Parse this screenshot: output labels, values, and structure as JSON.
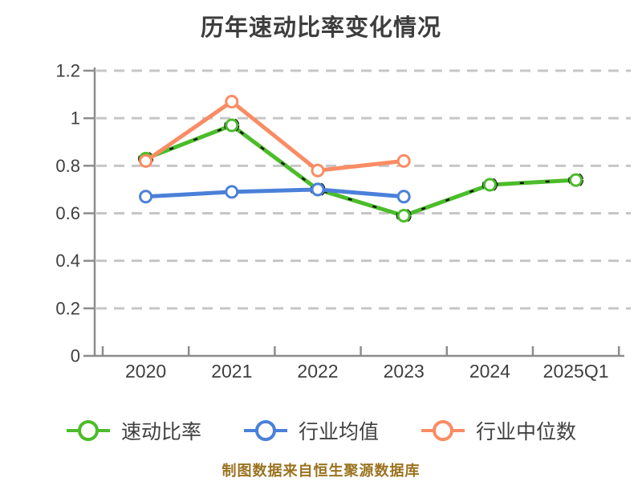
{
  "title": "历年速动比率变化情况",
  "caption": "制图数据来自恒生聚源数据库",
  "colors": {
    "quick_ratio": "#4BBC2A",
    "industry_avg": "#4A80D9",
    "industry_median": "#FA8C64",
    "grid": "#c6c6c6",
    "axis": "#8c8c8c",
    "text": "#3f3f3f",
    "caption": "#9A7320"
  },
  "chart_data": {
    "type": "line",
    "title": "历年速动比率变化情况",
    "categories": [
      "2020",
      "2021",
      "2022",
      "2023",
      "2024",
      "2025Q1"
    ],
    "series": [
      {
        "key": "quick_ratio",
        "name": "速动比率",
        "color": "#4BBC2A",
        "marker": "circle-open",
        "line_overlay": "black-dashed",
        "values": [
          0.83,
          0.97,
          0.7,
          0.59,
          0.72,
          0.74
        ]
      },
      {
        "key": "industry_avg",
        "name": "行业均值",
        "color": "#4A80D9",
        "marker": "circle-open",
        "values": [
          0.67,
          0.69,
          0.7,
          0.67,
          null,
          null
        ]
      },
      {
        "key": "industry_median",
        "name": "行业中位数",
        "color": "#FA8C64",
        "marker": "circle-open",
        "values": [
          0.82,
          1.07,
          0.78,
          0.82,
          null,
          null
        ]
      }
    ],
    "xlabel": "",
    "ylabel": "",
    "ylim": [
      0,
      1.2
    ],
    "y_ticks": [
      0,
      0.2,
      0.4,
      0.6,
      0.8,
      1,
      1.2
    ],
    "y_tick_labels": [
      "0",
      "0.2",
      "0.4",
      "0.6",
      "0.8",
      "1",
      "1.2"
    ],
    "grid": "horizontal-dashed",
    "legend_position": "bottom"
  }
}
